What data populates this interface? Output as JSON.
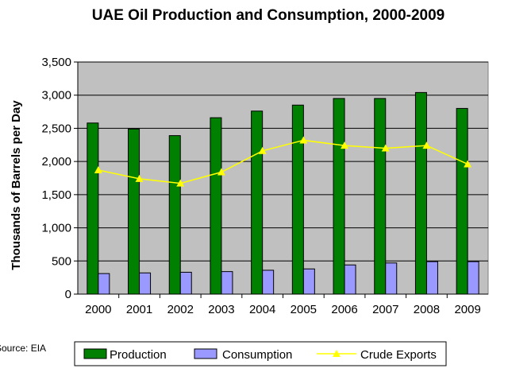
{
  "chart_data": {
    "type": "bar",
    "title": "UAE Oil Production and Consumption, 2000-2009",
    "xlabel": "",
    "ylabel": "Thousands of Barrels per Day",
    "categories": [
      "2000",
      "2001",
      "2002",
      "2003",
      "2004",
      "2005",
      "2006",
      "2007",
      "2008",
      "2009"
    ],
    "ylim": [
      0,
      3500
    ],
    "yticks": [
      0,
      500,
      1000,
      1500,
      2000,
      2500,
      3000,
      3500
    ],
    "ytick_labels": [
      "0",
      "500",
      "1,000",
      "1,500",
      "2,000",
      "2,500",
      "3,000",
      "3,500"
    ],
    "grid": true,
    "plot_background": "#c0c0c0",
    "legend_position": "bottom",
    "series": [
      {
        "name": "Production",
        "kind": "bar",
        "color": "#008000",
        "values": [
          2580,
          2490,
          2390,
          2660,
          2760,
          2850,
          2950,
          2950,
          3040,
          2800
        ]
      },
      {
        "name": "Consumption",
        "kind": "bar",
        "color": "#9999ff",
        "values": [
          310,
          320,
          330,
          340,
          360,
          380,
          440,
          470,
          490,
          490
        ]
      },
      {
        "name": "Crude Exports",
        "kind": "line",
        "color": "#ffff00",
        "values": [
          1870,
          1740,
          1670,
          1840,
          2160,
          2320,
          2240,
          2200,
          2240,
          1960
        ]
      }
    ],
    "source": "Source: EIA"
  }
}
